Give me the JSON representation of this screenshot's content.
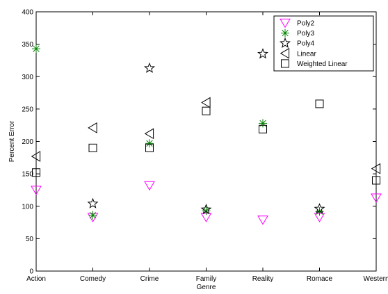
{
  "chart_data": {
    "type": "scatter",
    "title": "",
    "xlabel": "Genre",
    "ylabel": "Percent Error",
    "categories": [
      "Action",
      "Comedy",
      "Crime",
      "Family",
      "Reality",
      "Romace",
      "Western"
    ],
    "ylim": [
      0,
      400
    ],
    "yticks": [
      0,
      50,
      100,
      150,
      200,
      250,
      300,
      350,
      400
    ],
    "grid": false,
    "legend_position": "top-right",
    "series": [
      {
        "name": "Poly2",
        "marker": "triangle-down",
        "color": "#ff00ff",
        "values": [
          125,
          83,
          132,
          83,
          79,
          83,
          113
        ]
      },
      {
        "name": "Poly3",
        "marker": "asterisk",
        "color": "#008000",
        "values": [
          343,
          86,
          197,
          93,
          228,
          92,
          null
        ]
      },
      {
        "name": "Poly4",
        "marker": "star",
        "color": "#000000",
        "values": [
          null,
          104,
          313,
          95,
          335,
          96,
          null
        ]
      },
      {
        "name": "Linear",
        "marker": "triangle-left",
        "color": "#000000",
        "values": [
          177,
          221,
          212,
          260,
          null,
          null,
          158
        ]
      },
      {
        "name": "Weighted Linear",
        "marker": "square",
        "color": "#000000",
        "values": [
          152,
          190,
          190,
          247,
          219,
          258,
          140
        ]
      }
    ]
  }
}
